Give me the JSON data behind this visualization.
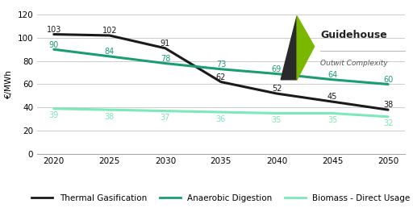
{
  "years": [
    2020,
    2025,
    2030,
    2035,
    2040,
    2045,
    2050
  ],
  "thermal_gasification": [
    103,
    102,
    91,
    62,
    52,
    45,
    38
  ],
  "anaerobic_digestion": [
    90,
    84,
    78,
    73,
    69,
    64,
    60
  ],
  "biomass_direct": [
    39,
    38,
    37,
    36,
    35,
    35,
    32
  ],
  "thermal_color": "#1a1a1a",
  "anaerobic_color": "#1a9e6e",
  "biomass_color": "#7de8b8",
  "ylabel": "€/MWh",
  "ylim": [
    0,
    120
  ],
  "yticks": [
    0,
    20,
    40,
    60,
    80,
    100,
    120
  ],
  "legend_labels": [
    "Thermal Gasification",
    "Anaerobic Digestion",
    "Biomass - Direct Usage"
  ],
  "bg_color": "#ffffff",
  "grid_color": "#cccccc",
  "label_fontsize": 7.5,
  "annotation_fontsize": 7.0,
  "guidehouse_text": "Guidehouse",
  "guidehouse_sub": "Outwit Complexity",
  "guidehouse_color": "#222222",
  "guidehouse_sub_color": "#555555",
  "logo_dark_color": "#2a2a2a",
  "logo_green_color": "#7ab800",
  "separator_color": "#aaaaaa"
}
